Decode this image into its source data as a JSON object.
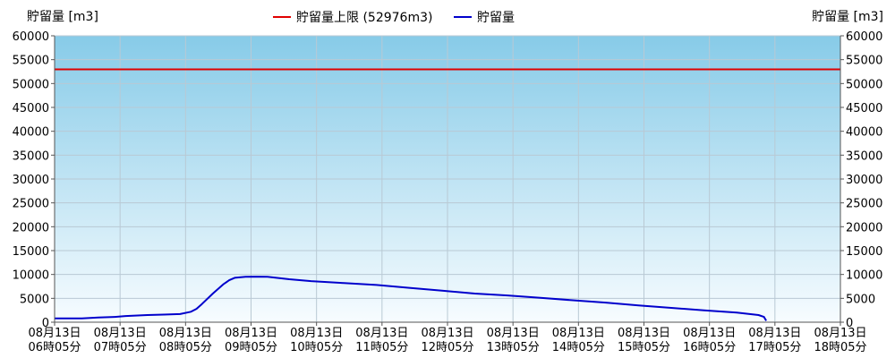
{
  "chart_data": {
    "type": "line",
    "ylabel_left": "貯留量 [m3]",
    "ylabel_right": "貯留量 [m3]",
    "ylim": [
      0,
      60000
    ],
    "yticks": [
      0,
      5000,
      10000,
      15000,
      20000,
      25000,
      30000,
      35000,
      40000,
      45000,
      50000,
      55000,
      60000
    ],
    "x_tick_labels": [
      {
        "line1": "08月13日",
        "line2": "06時05分"
      },
      {
        "line1": "08月13日",
        "line2": "07時05分"
      },
      {
        "line1": "08月13日",
        "line2": "08時05分"
      },
      {
        "line1": "08月13日",
        "line2": "09時05分"
      },
      {
        "line1": "08月13日",
        "line2": "10時05分"
      },
      {
        "line1": "08月13日",
        "line2": "11時05分"
      },
      {
        "line1": "08月13日",
        "line2": "12時05分"
      },
      {
        "line1": "08月13日",
        "line2": "13時05分"
      },
      {
        "line1": "08月13日",
        "line2": "14時05分"
      },
      {
        "line1": "08月13日",
        "line2": "15時05分"
      },
      {
        "line1": "08月13日",
        "line2": "16時05分"
      },
      {
        "line1": "08月13日",
        "line2": "17時05分"
      },
      {
        "line1": "08月13日",
        "line2": "18時05分"
      }
    ],
    "x_time_range": [
      "06:05",
      "18:05"
    ],
    "grid": true,
    "legend_position": "top-center",
    "series": [
      {
        "name": "貯留量上限 (52976m3)",
        "color": "#e00000",
        "type": "hline",
        "value": 52976
      },
      {
        "name": "貯留量",
        "color": "#0000cc",
        "type": "line",
        "x": [
          "06:05",
          "06:30",
          "06:45",
          "07:00",
          "07:10",
          "07:30",
          "07:45",
          "08:00",
          "08:10",
          "08:15",
          "08:20",
          "08:30",
          "08:40",
          "08:45",
          "08:50",
          "09:00",
          "09:10",
          "09:20",
          "09:40",
          "10:00",
          "10:30",
          "11:00",
          "11:30",
          "12:00",
          "12:30",
          "13:00",
          "13:30",
          "14:00",
          "14:30",
          "15:00",
          "15:30",
          "16:00",
          "16:30",
          "16:50",
          "16:55",
          "16:57"
        ],
        "y": [
          800,
          800,
          1000,
          1100,
          1300,
          1500,
          1600,
          1700,
          2200,
          2800,
          3800,
          6000,
          8000,
          8800,
          9300,
          9500,
          9550,
          9500,
          9000,
          8600,
          8200,
          7800,
          7200,
          6600,
          6000,
          5600,
          5100,
          4600,
          4100,
          3500,
          3000,
          2500,
          2000,
          1500,
          1100,
          300
        ]
      }
    ]
  }
}
